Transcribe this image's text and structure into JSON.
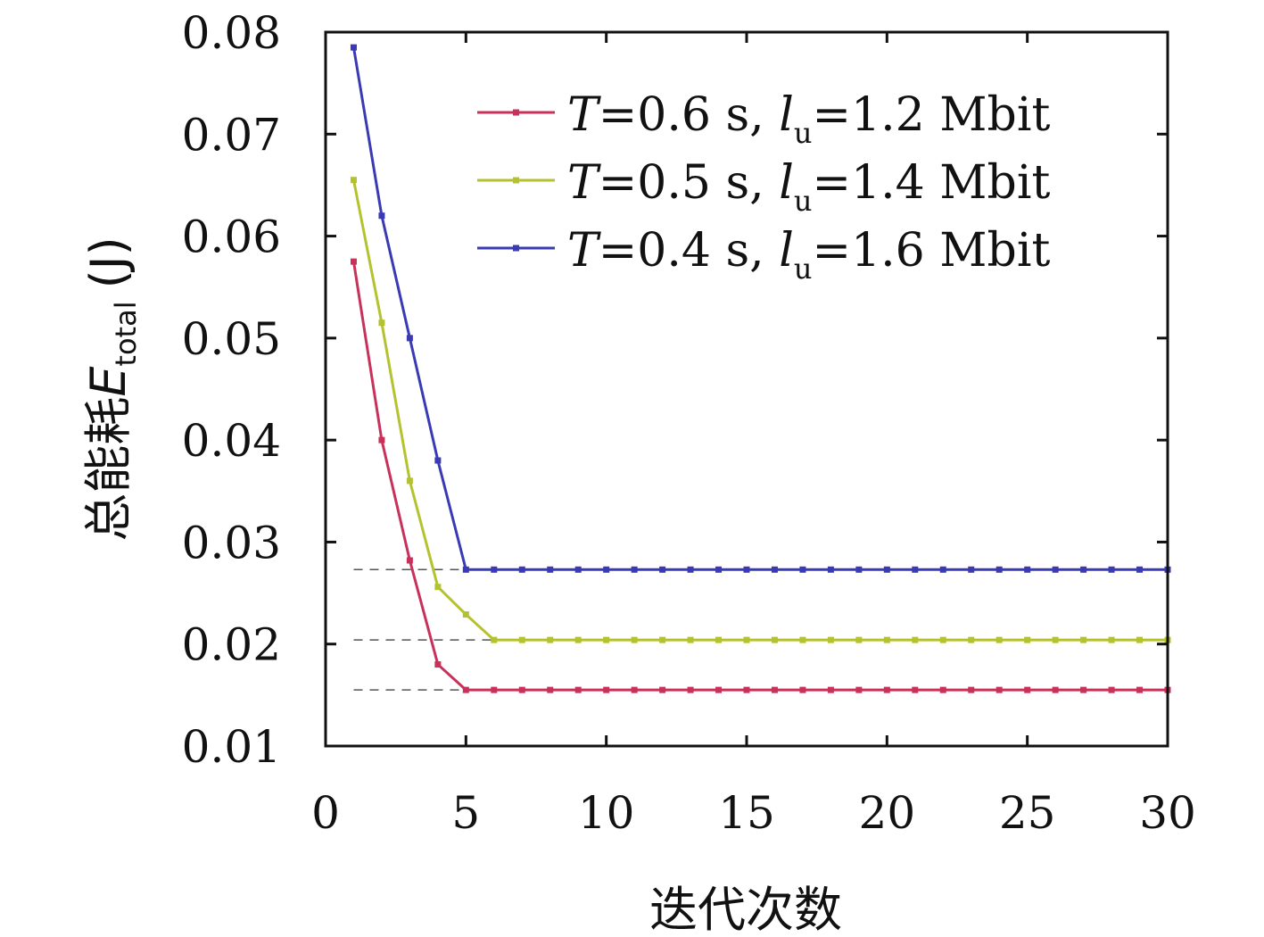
{
  "chart_data": {
    "type": "line",
    "xlabel": "迭代次数",
    "ylabel": {
      "prefix": "总能耗",
      "symbol": "E",
      "subscript": "total",
      "unit": "(J)"
    },
    "xlim": [
      0,
      30
    ],
    "ylim": [
      0.01,
      0.08
    ],
    "xticks": [
      0,
      5,
      10,
      15,
      20,
      25,
      30
    ],
    "xtick_labels": [
      "0",
      "5",
      "10",
      "15",
      "20",
      "25",
      "30"
    ],
    "yticks": [
      0.01,
      0.02,
      0.03,
      0.04,
      0.05,
      0.06,
      0.07,
      0.08
    ],
    "ytick_labels": [
      "0.01",
      "0.02",
      "0.03",
      "0.04",
      "0.05",
      "0.06",
      "0.07",
      "0.08"
    ],
    "grid": false,
    "legend_position": "top-right",
    "x": [
      1,
      2,
      3,
      4,
      5,
      6,
      7,
      8,
      9,
      10,
      11,
      12,
      13,
      14,
      15,
      16,
      17,
      18,
      19,
      20,
      21,
      22,
      23,
      24,
      25,
      26,
      27,
      28,
      29,
      30
    ],
    "series": [
      {
        "legend": {
          "T": "T",
          "t_value": "=0.6 s, ",
          "l": "l",
          "l_sub": "u",
          "l_value": "=1.2 Mbit"
        },
        "color": "#c8325a",
        "values": [
          0.0575,
          0.04,
          0.0282,
          0.018,
          0.0155,
          0.0155,
          0.0155,
          0.0155,
          0.0155,
          0.0155,
          0.0155,
          0.0155,
          0.0155,
          0.0155,
          0.0155,
          0.0155,
          0.0155,
          0.0155,
          0.0155,
          0.0155,
          0.0155,
          0.0155,
          0.0155,
          0.0155,
          0.0155,
          0.0155,
          0.0155,
          0.0155,
          0.0155,
          0.0155
        ]
      },
      {
        "legend": {
          "T": "T",
          "t_value": "=0.5 s, ",
          "l": "l",
          "l_sub": "u",
          "l_value": "=1.4 Mbit"
        },
        "color": "#b5c22f",
        "values": [
          0.0655,
          0.0515,
          0.036,
          0.0256,
          0.0229,
          0.0204,
          0.0204,
          0.0204,
          0.0204,
          0.0204,
          0.0204,
          0.0204,
          0.0204,
          0.0204,
          0.0204,
          0.0204,
          0.0204,
          0.0204,
          0.0204,
          0.0204,
          0.0204,
          0.0204,
          0.0204,
          0.0204,
          0.0204,
          0.0204,
          0.0204,
          0.0204,
          0.0204,
          0.0204
        ]
      },
      {
        "legend": {
          "T": "T",
          "t_value": "=0.4 s, ",
          "l": "l",
          "l_sub": "u",
          "l_value": "=1.6 Mbit"
        },
        "color": "#3a3ab4",
        "values": [
          0.0785,
          0.062,
          0.05,
          0.038,
          0.0273,
          0.0273,
          0.0273,
          0.0273,
          0.0273,
          0.0273,
          0.0273,
          0.0273,
          0.0273,
          0.0273,
          0.0273,
          0.0273,
          0.0273,
          0.0273,
          0.0273,
          0.0273,
          0.0273,
          0.0273,
          0.0273,
          0.0273,
          0.0273,
          0.0273,
          0.0273,
          0.0273,
          0.0273,
          0.0273
        ]
      }
    ],
    "reference_lines": [
      {
        "y": 0.0273,
        "x_from": 1,
        "x_to": 5,
        "style": "dashed"
      },
      {
        "y": 0.0204,
        "x_from": 1,
        "x_to": 6,
        "style": "dashed"
      },
      {
        "y": 0.0155,
        "x_from": 1,
        "x_to": 5,
        "style": "dashed"
      }
    ]
  }
}
